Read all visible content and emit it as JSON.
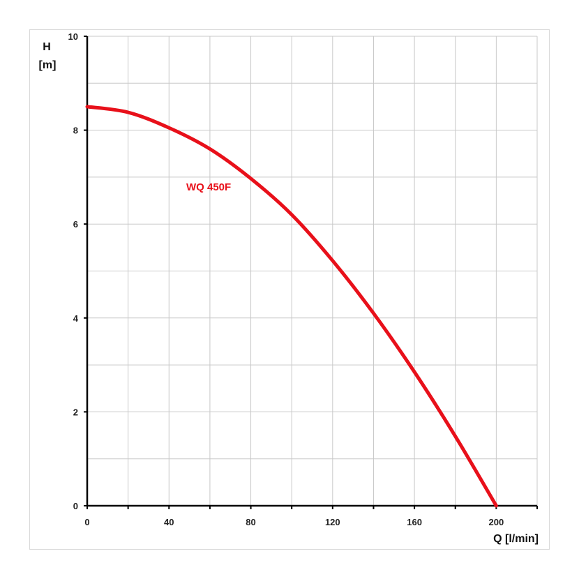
{
  "chart_data": {
    "type": "line",
    "xlabel": "Q [l/min]",
    "ylabel": "H",
    "ylabel_unit": "[m]",
    "xlim": [
      0,
      220
    ],
    "ylim": [
      0,
      10
    ],
    "x_ticks": [
      0,
      40,
      80,
      120,
      160,
      200
    ],
    "y_ticks": [
      0,
      2,
      4,
      6,
      8,
      10
    ],
    "x_grid_step": 20,
    "y_grid_step": 1,
    "grid": true,
    "series": [
      {
        "name": "WQ 450F",
        "color": "#e8101a",
        "x": [
          0,
          20,
          40,
          60,
          80,
          100,
          120,
          140,
          160,
          180,
          200
        ],
        "y": [
          8.5,
          8.38,
          8.05,
          7.6,
          6.97,
          6.2,
          5.22,
          4.1,
          2.85,
          1.48,
          0
        ]
      }
    ]
  }
}
